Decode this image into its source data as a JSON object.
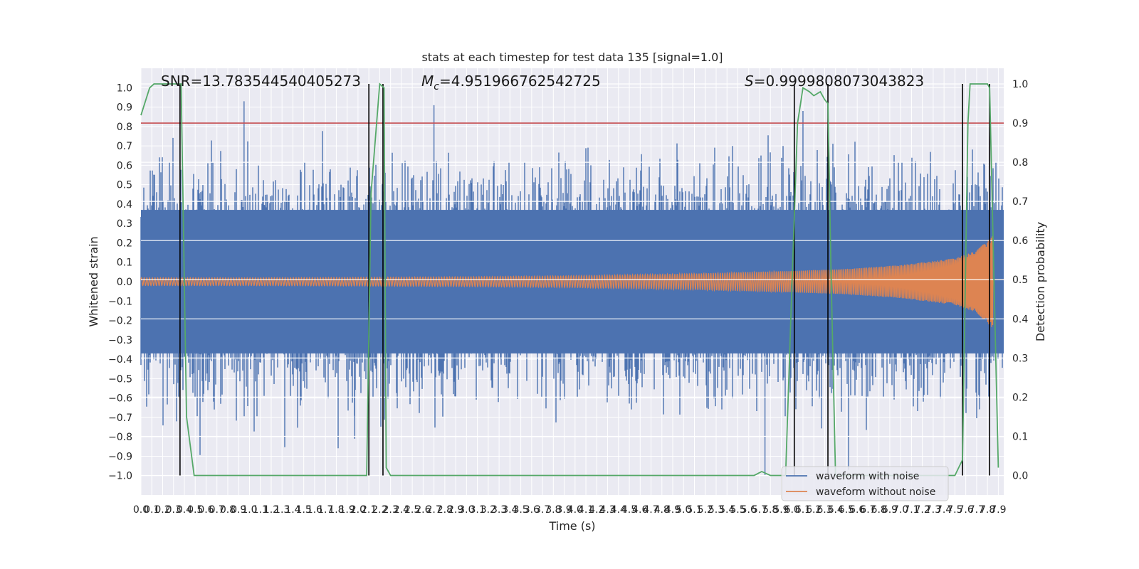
{
  "chart_data": {
    "type": "line",
    "title": "stats at each timestep for test data 135 [signal=1.0]",
    "xlabel": "Time (s)",
    "ylabel": "Whitened strain",
    "ylabel_right": "Detection probability",
    "xlim": [
      0,
      7.95
    ],
    "ylim": [
      -1.1,
      1.1
    ],
    "ylim_right": [
      -0.05,
      1.04
    ],
    "x_ticks": [
      "0.0",
      "0.1",
      "0.2",
      "0.3",
      "0.4",
      "0.5",
      "0.6",
      "0.7",
      "0.8",
      "0.9",
      "1.0",
      "1.1",
      "1.2",
      "1.3",
      "1.4",
      "1.5",
      "1.6",
      "1.7",
      "1.8",
      "1.9",
      "2.0",
      "2.1",
      "2.2",
      "2.3",
      "2.4",
      "2.5",
      "2.6",
      "2.7",
      "2.8",
      "2.9",
      "3.0",
      "3.1",
      "3.2",
      "3.3",
      "3.4",
      "3.5",
      "3.6",
      "3.7",
      "3.8",
      "3.9",
      "4.0",
      "4.1",
      "4.2",
      "4.3",
      "4.4",
      "4.5",
      "4.6",
      "4.7",
      "4.8",
      "4.9",
      "5.0",
      "5.1",
      "5.2",
      "5.3",
      "5.4",
      "5.5",
      "5.6",
      "5.7",
      "5.8",
      "5.9",
      "6.0",
      "6.1",
      "6.2",
      "6.3",
      "6.4",
      "6.5",
      "6.6",
      "6.7",
      "6.8",
      "6.9",
      "7.0",
      "7.1",
      "7.2",
      "7.3",
      "7.4",
      "7.5",
      "7.6",
      "7.7",
      "7.8",
      "7.9"
    ],
    "y_ticks": [
      "1.0",
      "0.9",
      "0.8",
      "0.7",
      "0.6",
      "0.5",
      "0.4",
      "0.3",
      "0.2",
      "0.1",
      "0.0",
      "-0.1",
      "-0.2",
      "-0.3",
      "-0.4",
      "-0.5",
      "-0.6",
      "-0.7",
      "-0.8",
      "-0.9",
      "-1.0"
    ],
    "y_ticks_right": [
      "1.0",
      "0.9",
      "0.8",
      "0.7",
      "0.6",
      "0.5",
      "0.4",
      "0.3",
      "0.2",
      "0.1",
      "0.0"
    ],
    "annotations": {
      "snr": "SNR=13.783544540405273",
      "mc_symbol": "M",
      "mc_sub": "c",
      "mc_value": "=4.951966762542725",
      "s_symbol": "S",
      "s_value": "=0.9999808073043823"
    },
    "threshold_right": 0.9,
    "vertical_markers": [
      0.36,
      2.1,
      2.23,
      6.02,
      6.33,
      7.57,
      7.82
    ],
    "series": [
      {
        "name": "waveform with noise",
        "color": "#4c72b0",
        "noise_amplitude_envelope": {
          "x": [
            0.0,
            7.95
          ],
          "values": [
            0.37,
            0.37
          ]
        },
        "peak_values": [
          0.93,
          -0.81,
          0.91,
          -1.0,
          0.88,
          -0.97
        ]
      },
      {
        "name": "waveform without noise",
        "color": "#dd8452",
        "amplitude_envelope": {
          "x": [
            0.0,
            1.0,
            2.0,
            3.0,
            4.0,
            5.0,
            6.0,
            6.5,
            7.0,
            7.5,
            7.7,
            7.85,
            7.86,
            7.95
          ],
          "values": [
            0.02,
            0.02,
            0.022,
            0.025,
            0.03,
            0.04,
            0.055,
            0.065,
            0.085,
            0.12,
            0.16,
            0.24,
            0.01,
            0.01
          ]
        }
      },
      {
        "name": "detection probability",
        "color": "#55a868",
        "axis": "right",
        "x": [
          0.0,
          0.08,
          0.12,
          0.35,
          0.37,
          0.42,
          0.49,
          0.55,
          2.08,
          2.12,
          2.2,
          2.24,
          2.26,
          2.3,
          2.35,
          2.6,
          2.7,
          5.5,
          5.65,
          5.72,
          5.8,
          5.94,
          6.0,
          6.05,
          6.1,
          6.16,
          6.2,
          6.26,
          6.3,
          6.33,
          6.36,
          6.4,
          7.2,
          7.5,
          7.57,
          7.62,
          7.64,
          7.8,
          7.82,
          7.86,
          7.9
        ],
        "values": [
          0.92,
          0.99,
          1.0,
          1.0,
          1.0,
          0.15,
          0.0,
          0.0,
          0.0,
          0.72,
          1.0,
          0.99,
          0.02,
          0.0,
          0.0,
          0.0,
          0.0,
          0.0,
          0.0,
          0.01,
          0.0,
          0.0,
          0.5,
          0.9,
          0.99,
          0.98,
          0.97,
          0.98,
          0.96,
          0.95,
          0.5,
          0.0,
          0.0,
          0.0,
          0.04,
          0.9,
          1.0,
          1.0,
          0.99,
          0.5,
          0.02
        ]
      }
    ],
    "legend": [
      {
        "label": "waveform with noise",
        "color": "#4c72b0"
      },
      {
        "label": "waveform without noise",
        "color": "#dd8452"
      }
    ],
    "legend_position": "lower-right",
    "grid": true,
    "style": {
      "plot_bg": "#eaeaf2",
      "grid": "#ffffff",
      "threshold": "#c44e52",
      "marker": "#000000"
    }
  }
}
